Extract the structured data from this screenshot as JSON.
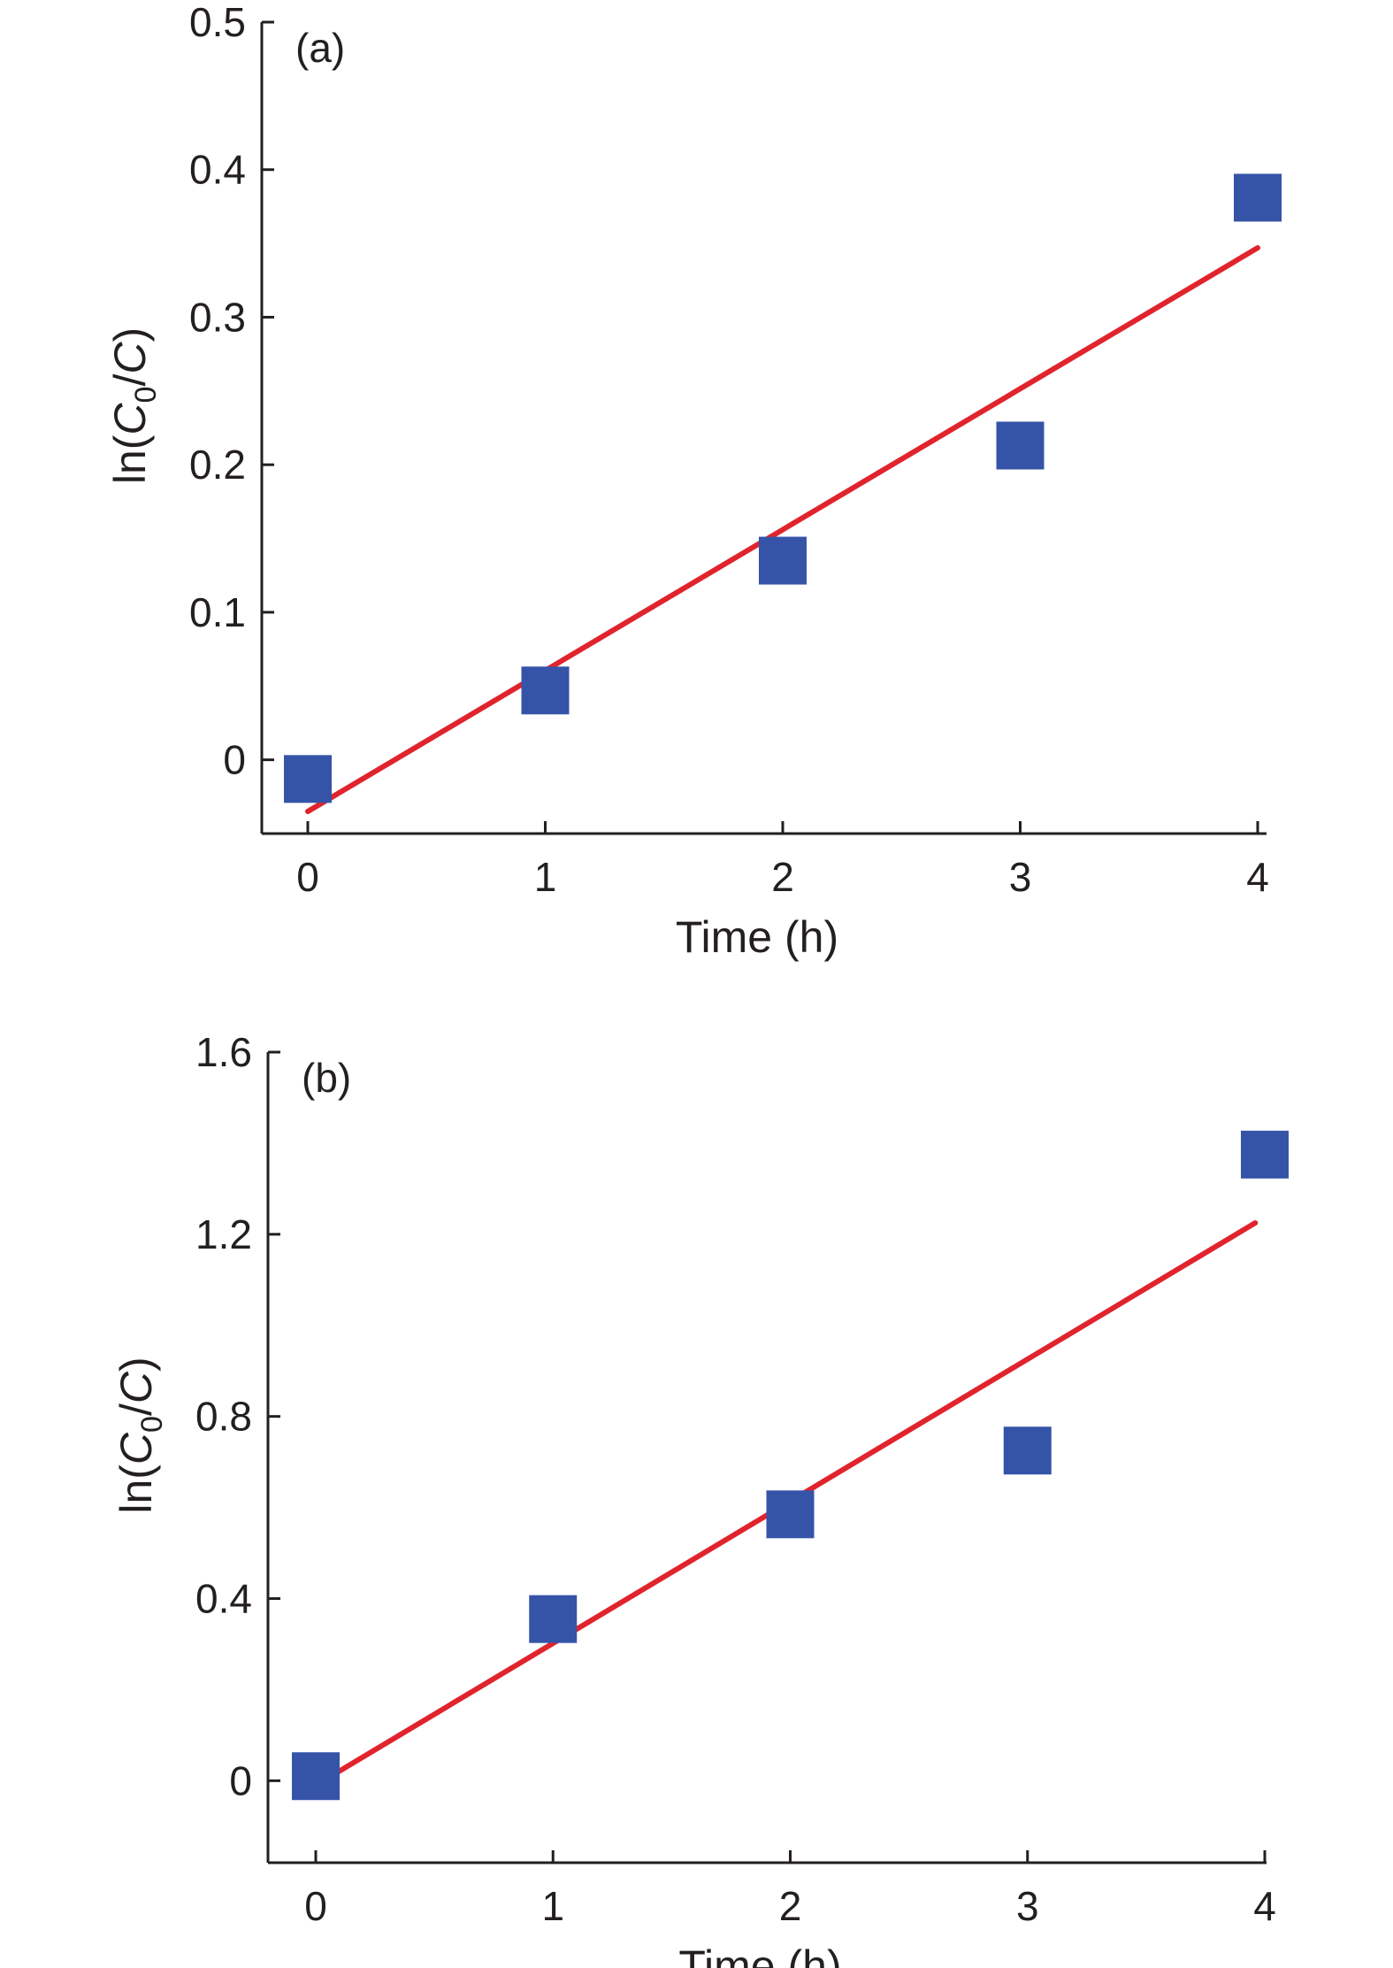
{
  "chart_data": [
    {
      "type": "scatter",
      "panel_label": "(a)",
      "xlabel": "Time (h)",
      "ylabel": {
        "pre": "ln(",
        "main": "C",
        "sub": "0",
        "post": "/C)"
      },
      "xlim": [
        -0.2,
        4.0
      ],
      "ylim": [
        -0.05,
        0.5
      ],
      "xticks": [
        0,
        1,
        2,
        3,
        4
      ],
      "xtick_labels": [
        "0",
        "1",
        "2",
        "3",
        "4"
      ],
      "yticks": [
        0,
        0.1,
        0.2,
        0.3,
        0.4,
        0.5
      ],
      "ytick_labels": [
        "0",
        "0.1",
        "0.2",
        "0.3",
        "0.4",
        "0.5"
      ],
      "points": [
        {
          "x": 0,
          "y": -0.013
        },
        {
          "x": 1,
          "y": 0.047
        },
        {
          "x": 2,
          "y": 0.135
        },
        {
          "x": 3,
          "y": 0.213
        },
        {
          "x": 4,
          "y": 0.381
        }
      ],
      "fit_line": {
        "x": [
          0,
          4
        ],
        "y": [
          -0.035,
          0.347
        ]
      },
      "grid": false,
      "colors": {
        "points": "#3554a8",
        "fit": "#e0242d"
      }
    },
    {
      "type": "scatter",
      "panel_label": "(b)",
      "xlabel": "Time (h)",
      "ylabel": {
        "pre": "ln(",
        "main": "C",
        "sub": "0",
        "post": "/C)"
      },
      "xlim": [
        -0.2,
        4.0
      ],
      "ylim": [
        -0.18,
        1.6
      ],
      "xticks": [
        0,
        1,
        2,
        3,
        4
      ],
      "xtick_labels": [
        "0",
        "1",
        "2",
        "3",
        "4"
      ],
      "yticks": [
        0,
        0.4,
        0.8,
        1.2,
        1.6
      ],
      "ytick_labels": [
        "0",
        "0.4",
        "0.8",
        "1.2",
        "1.6"
      ],
      "points": [
        {
          "x": 0,
          "y": 0.01
        },
        {
          "x": 1,
          "y": 0.355
        },
        {
          "x": 2,
          "y": 0.585
        },
        {
          "x": 3,
          "y": 0.725
        },
        {
          "x": 4,
          "y": 1.375
        }
      ],
      "fit_line": {
        "x": [
          0,
          3.96
        ],
        "y": [
          -0.01,
          1.225
        ]
      },
      "grid": false,
      "colors": {
        "points": "#3554a8",
        "fit": "#e0242d"
      }
    }
  ]
}
